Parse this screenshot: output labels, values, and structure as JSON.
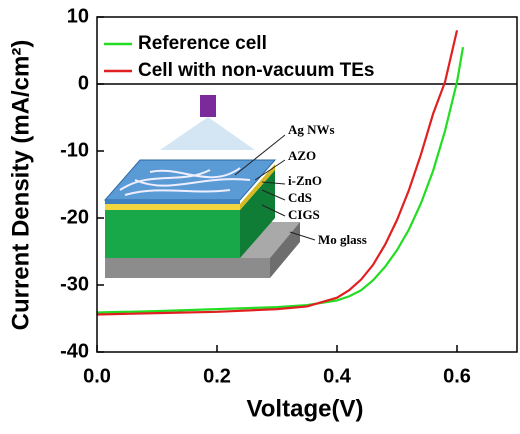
{
  "chart_data": {
    "type": "line",
    "x_label": "Voltage(V)",
    "y_label": "Current Density (mA/cm²)",
    "x": [
      0,
      0.1,
      0.2,
      0.3,
      0.35,
      0.4,
      0.42,
      0.44,
      0.46,
      0.48,
      0.5,
      0.52,
      0.54,
      0.56,
      0.58,
      0.6,
      0.61
    ],
    "series": [
      {
        "name": "Reference cell",
        "color": "#22dd22",
        "values": [
          -34.1,
          -33.9,
          -33.6,
          -33.3,
          -33.0,
          -32.3,
          -31.7,
          -30.8,
          -29.3,
          -27.3,
          -24.8,
          -21.7,
          -17.8,
          -13.0,
          -7.0,
          0.3,
          5.5
        ]
      },
      {
        "name": "Cell with non-vacuum TEs",
        "color": "#e02020",
        "values": [
          -34.4,
          -34.2,
          -34.0,
          -33.6,
          -33.2,
          -31.9,
          -30.8,
          -29.2,
          -27.0,
          -24.0,
          -20.3,
          -15.8,
          -10.5,
          -4.5,
          0.3,
          8.0,
          null
        ]
      }
    ],
    "xlim": [
      0,
      0.7
    ],
    "ylim": [
      -40,
      10
    ],
    "xticks": [
      {
        "value": 0,
        "label": "0.0"
      },
      0.2,
      0.4,
      0.6
    ],
    "yticks": [
      -40,
      -30,
      -20,
      -10,
      0,
      10
    ],
    "zero_line": true,
    "legend": "upper left",
    "inset_labels": [
      "Ag NWs",
      "AZO",
      "i-ZnO",
      "CdS",
      "CIGS",
      "Mo glass"
    ]
  }
}
